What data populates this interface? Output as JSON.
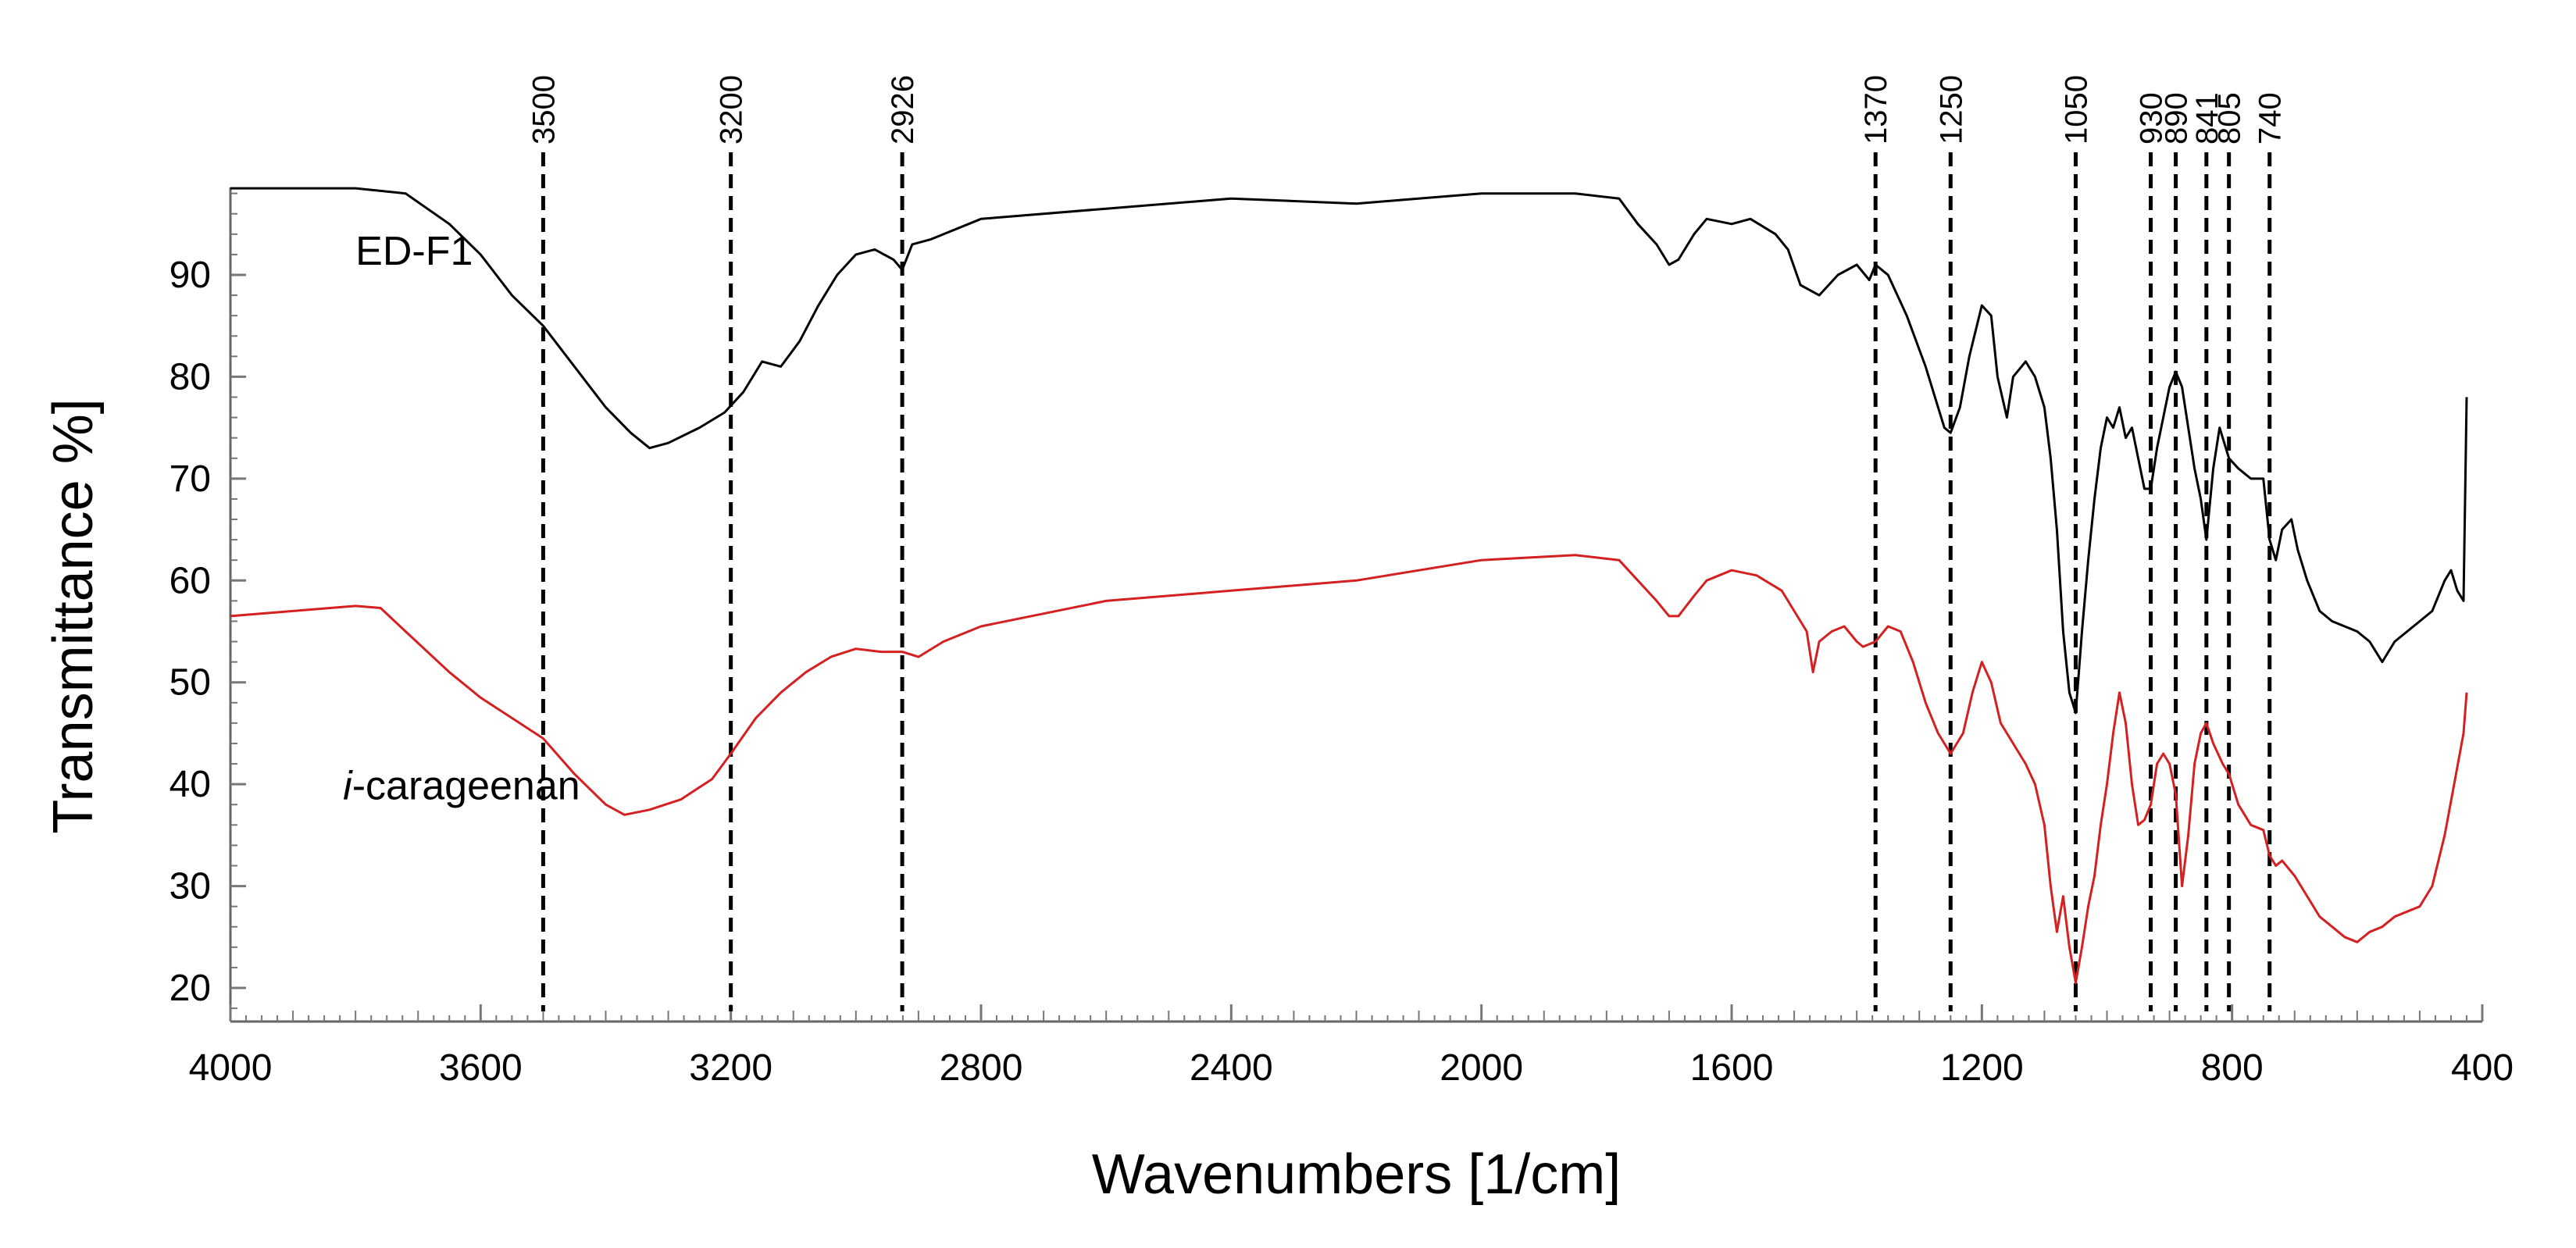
{
  "chart_data": {
    "type": "line",
    "title": "",
    "xlabel": "Wavenumbers [1/cm]",
    "ylabel": "Transmittance %]",
    "xlim": [
      4000,
      400
    ],
    "ylim": [
      17,
      100
    ],
    "x_ticks": [
      4000,
      3600,
      3200,
      2800,
      2400,
      2000,
      1600,
      1200,
      800,
      400
    ],
    "y_ticks": [
      20,
      30,
      40,
      50,
      60,
      70,
      80,
      90
    ],
    "grid": false,
    "peak_lines": [
      3500,
      3200,
      2926,
      1370,
      1250,
      1050,
      930,
      890,
      841,
      805,
      740
    ],
    "series": [
      {
        "name": "ED-F1",
        "label_prefix": "",
        "label_suffix": "ED-F1",
        "color": "#000000",
        "label_at": [
          3800,
          91
        ],
        "points": [
          [
            4000,
            98.5
          ],
          [
            3800,
            98.5
          ],
          [
            3720,
            98
          ],
          [
            3650,
            95
          ],
          [
            3600,
            92
          ],
          [
            3550,
            88
          ],
          [
            3500,
            85
          ],
          [
            3450,
            81
          ],
          [
            3400,
            77
          ],
          [
            3360,
            74.5
          ],
          [
            3330,
            73
          ],
          [
            3300,
            73.5
          ],
          [
            3250,
            75
          ],
          [
            3210,
            76.5
          ],
          [
            3180,
            78.5
          ],
          [
            3150,
            81.5
          ],
          [
            3120,
            81
          ],
          [
            3090,
            83.5
          ],
          [
            3060,
            87
          ],
          [
            3030,
            90
          ],
          [
            3000,
            92
          ],
          [
            2970,
            92.5
          ],
          [
            2940,
            91.5
          ],
          [
            2926,
            90.5
          ],
          [
            2910,
            93
          ],
          [
            2880,
            93.5
          ],
          [
            2800,
            95.5
          ],
          [
            2600,
            96.5
          ],
          [
            2400,
            97.5
          ],
          [
            2200,
            97
          ],
          [
            2000,
            98
          ],
          [
            1850,
            98
          ],
          [
            1780,
            97.5
          ],
          [
            1750,
            95
          ],
          [
            1720,
            93
          ],
          [
            1700,
            91
          ],
          [
            1685,
            91.5
          ],
          [
            1660,
            94
          ],
          [
            1640,
            95.5
          ],
          [
            1600,
            95
          ],
          [
            1570,
            95.5
          ],
          [
            1530,
            94
          ],
          [
            1510,
            92.5
          ],
          [
            1490,
            89
          ],
          [
            1460,
            88
          ],
          [
            1430,
            90
          ],
          [
            1400,
            91
          ],
          [
            1380,
            89.5
          ],
          [
            1370,
            91
          ],
          [
            1350,
            90
          ],
          [
            1320,
            86
          ],
          [
            1290,
            81
          ],
          [
            1260,
            75
          ],
          [
            1250,
            74.5
          ],
          [
            1235,
            77
          ],
          [
            1220,
            82
          ],
          [
            1200,
            87
          ],
          [
            1185,
            86
          ],
          [
            1175,
            80
          ],
          [
            1160,
            76
          ],
          [
            1150,
            80
          ],
          [
            1130,
            81.5
          ],
          [
            1115,
            80
          ],
          [
            1100,
            77
          ],
          [
            1090,
            72
          ],
          [
            1080,
            65
          ],
          [
            1070,
            55
          ],
          [
            1060,
            49
          ],
          [
            1050,
            47
          ],
          [
            1040,
            55
          ],
          [
            1030,
            62
          ],
          [
            1020,
            68
          ],
          [
            1010,
            73
          ],
          [
            1000,
            76
          ],
          [
            990,
            75
          ],
          [
            980,
            77
          ],
          [
            970,
            74
          ],
          [
            960,
            75
          ],
          [
            950,
            72
          ],
          [
            940,
            69
          ],
          [
            930,
            69
          ],
          [
            920,
            73
          ],
          [
            910,
            76
          ],
          [
            900,
            79
          ],
          [
            890,
            80.5
          ],
          [
            880,
            79
          ],
          [
            870,
            75
          ],
          [
            860,
            71
          ],
          [
            850,
            68
          ],
          [
            841,
            64
          ],
          [
            830,
            71
          ],
          [
            820,
            75
          ],
          [
            810,
            73
          ],
          [
            805,
            72
          ],
          [
            790,
            71
          ],
          [
            770,
            70
          ],
          [
            750,
            70
          ],
          [
            740,
            64
          ],
          [
            730,
            62
          ],
          [
            720,
            65
          ],
          [
            705,
            66
          ],
          [
            695,
            63
          ],
          [
            680,
            60
          ],
          [
            660,
            57
          ],
          [
            640,
            56
          ],
          [
            620,
            55.5
          ],
          [
            600,
            55
          ],
          [
            580,
            54
          ],
          [
            560,
            52
          ],
          [
            540,
            54
          ],
          [
            520,
            55
          ],
          [
            500,
            56
          ],
          [
            480,
            57
          ],
          [
            460,
            60
          ],
          [
            450,
            61
          ],
          [
            440,
            59
          ],
          [
            430,
            58
          ],
          [
            425,
            78
          ]
        ]
      },
      {
        "name": "i-carageenan",
        "label_prefix": "i",
        "label_suffix": "-carageenan",
        "color": "#d42020",
        "label_at": [
          3820,
          38.5
        ],
        "points": [
          [
            4000,
            56.5
          ],
          [
            3900,
            57
          ],
          [
            3800,
            57.5
          ],
          [
            3760,
            57.3
          ],
          [
            3720,
            55
          ],
          [
            3650,
            51
          ],
          [
            3600,
            48.5
          ],
          [
            3550,
            46.5
          ],
          [
            3500,
            44.5
          ],
          [
            3450,
            41
          ],
          [
            3400,
            38
          ],
          [
            3370,
            37
          ],
          [
            3330,
            37.5
          ],
          [
            3280,
            38.5
          ],
          [
            3230,
            40.5
          ],
          [
            3200,
            43
          ],
          [
            3160,
            46.5
          ],
          [
            3120,
            49
          ],
          [
            3080,
            51
          ],
          [
            3040,
            52.5
          ],
          [
            3000,
            53.3
          ],
          [
            2960,
            53
          ],
          [
            2926,
            53
          ],
          [
            2900,
            52.5
          ],
          [
            2860,
            54
          ],
          [
            2800,
            55.5
          ],
          [
            2600,
            58
          ],
          [
            2400,
            59
          ],
          [
            2200,
            60
          ],
          [
            2000,
            62
          ],
          [
            1850,
            62.5
          ],
          [
            1780,
            62
          ],
          [
            1750,
            60
          ],
          [
            1720,
            58
          ],
          [
            1700,
            56.5
          ],
          [
            1685,
            56.5
          ],
          [
            1660,
            58.5
          ],
          [
            1640,
            60
          ],
          [
            1600,
            61
          ],
          [
            1560,
            60.5
          ],
          [
            1520,
            59
          ],
          [
            1500,
            57
          ],
          [
            1480,
            55
          ],
          [
            1470,
            51
          ],
          [
            1460,
            54
          ],
          [
            1440,
            55
          ],
          [
            1420,
            55.5
          ],
          [
            1400,
            54
          ],
          [
            1390,
            53.5
          ],
          [
            1370,
            54
          ],
          [
            1350,
            55.5
          ],
          [
            1330,
            55
          ],
          [
            1310,
            52
          ],
          [
            1290,
            48
          ],
          [
            1270,
            45
          ],
          [
            1250,
            43
          ],
          [
            1230,
            45
          ],
          [
            1215,
            49
          ],
          [
            1200,
            52
          ],
          [
            1185,
            50
          ],
          [
            1170,
            46
          ],
          [
            1150,
            44
          ],
          [
            1130,
            42
          ],
          [
            1115,
            40
          ],
          [
            1100,
            36
          ],
          [
            1090,
            30
          ],
          [
            1080,
            25.5
          ],
          [
            1070,
            29
          ],
          [
            1060,
            24
          ],
          [
            1050,
            20.5
          ],
          [
            1040,
            24
          ],
          [
            1030,
            28
          ],
          [
            1020,
            31
          ],
          [
            1010,
            36
          ],
          [
            1000,
            40
          ],
          [
            990,
            45
          ],
          [
            980,
            49
          ],
          [
            970,
            46
          ],
          [
            960,
            40
          ],
          [
            950,
            36
          ],
          [
            940,
            36.5
          ],
          [
            930,
            38
          ],
          [
            920,
            42
          ],
          [
            910,
            43
          ],
          [
            900,
            42
          ],
          [
            890,
            39
          ],
          [
            880,
            30
          ],
          [
            870,
            35
          ],
          [
            860,
            42
          ],
          [
            850,
            45
          ],
          [
            841,
            46
          ],
          [
            830,
            44
          ],
          [
            815,
            42
          ],
          [
            805,
            41
          ],
          [
            790,
            38
          ],
          [
            770,
            36
          ],
          [
            750,
            35.5
          ],
          [
            740,
            33
          ],
          [
            730,
            32
          ],
          [
            720,
            32.5
          ],
          [
            700,
            31
          ],
          [
            680,
            29
          ],
          [
            660,
            27
          ],
          [
            640,
            26
          ],
          [
            620,
            25
          ],
          [
            600,
            24.5
          ],
          [
            580,
            25.5
          ],
          [
            560,
            26
          ],
          [
            540,
            27
          ],
          [
            520,
            27.5
          ],
          [
            500,
            28
          ],
          [
            480,
            30
          ],
          [
            460,
            35
          ],
          [
            445,
            40
          ],
          [
            430,
            45
          ],
          [
            425,
            49
          ]
        ]
      }
    ]
  }
}
